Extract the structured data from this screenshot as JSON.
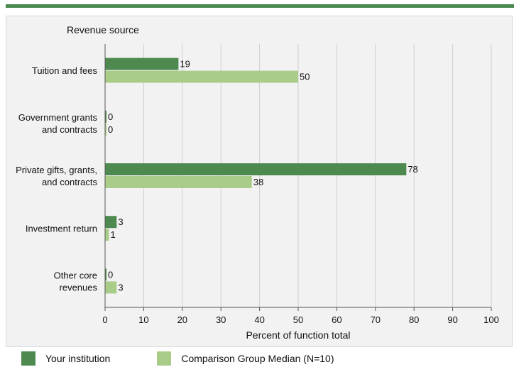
{
  "chart_data": {
    "type": "bar",
    "orientation": "horizontal",
    "title": "Revenue source",
    "xlabel": "Percent of function total",
    "xlim": [
      0,
      100
    ],
    "xticks": [
      0,
      10,
      20,
      30,
      40,
      50,
      60,
      70,
      80,
      90,
      100
    ],
    "grid": true,
    "legend_position": "bottom",
    "categories": [
      [
        "Tuition and fees"
      ],
      [
        "Government grants",
        "and contracts"
      ],
      [
        "Private gifts, grants,",
        "and contracts"
      ],
      [
        "Investment return"
      ],
      [
        "Other core",
        "revenues"
      ]
    ],
    "series": [
      {
        "name": "Your institution",
        "color": "#4e8a50",
        "values": [
          19,
          0,
          78,
          3,
          0
        ]
      },
      {
        "name": "Comparison Group Median (N=10)",
        "color": "#a9cd88",
        "values": [
          50,
          0,
          38,
          1,
          3
        ]
      }
    ]
  }
}
